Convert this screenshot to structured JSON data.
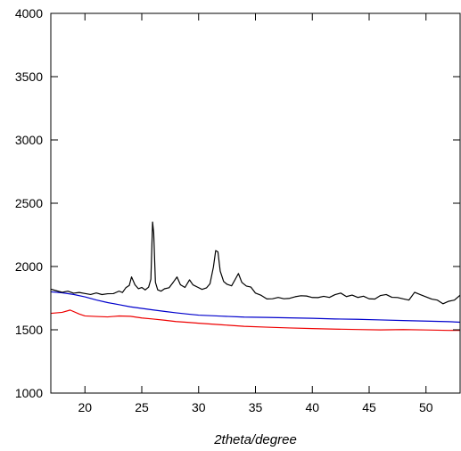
{
  "chart_data": {
    "type": "line",
    "title": "",
    "xlabel": "2theta/degree",
    "ylabel": "",
    "xlim": [
      17,
      53
    ],
    "ylim": [
      1000,
      4000
    ],
    "x_ticks": [
      20,
      25,
      30,
      35,
      40,
      45,
      50
    ],
    "y_ticks": [
      1000,
      1500,
      2000,
      2500,
      3000,
      3500,
      4000
    ],
    "grid": false,
    "legend": "none",
    "series": [
      {
        "color": "#000000",
        "x": [
          17,
          17.5,
          18,
          18.5,
          19,
          19.5,
          20,
          20.5,
          21,
          21.5,
          22,
          22.5,
          23,
          23.3,
          23.6,
          23.9,
          24.1,
          24.4,
          24.7,
          25,
          25.3,
          25.6,
          25.8,
          25.95,
          26.05,
          26.2,
          26.4,
          26.7,
          27,
          27.4,
          27.8,
          28.1,
          28.4,
          28.8,
          29.2,
          29.5,
          29.9,
          30.3,
          30.7,
          31,
          31.3,
          31.5,
          31.7,
          31.9,
          32.2,
          32.5,
          32.9,
          33.2,
          33.5,
          33.8,
          34.2,
          34.6,
          35,
          35.5,
          36,
          36.5,
          37,
          37.5,
          38,
          38.5,
          39,
          39.5,
          40,
          40.5,
          41,
          41.5,
          42,
          42.5,
          43,
          43.5,
          44,
          44.5,
          45,
          45.5,
          46,
          46.5,
          47,
          47.5,
          48,
          48.5,
          49,
          49.5,
          50,
          50.5,
          51,
          51.5,
          52,
          52.5,
          53
        ],
        "y": [
          1820,
          1810,
          1800,
          1810,
          1795,
          1800,
          1790,
          1780,
          1790,
          1775,
          1780,
          1780,
          1800,
          1790,
          1830,
          1850,
          1920,
          1860,
          1830,
          1840,
          1820,
          1840,
          1900,
          2350,
          2260,
          1870,
          1810,
          1800,
          1820,
          1830,
          1880,
          1920,
          1860,
          1840,
          1900,
          1860,
          1840,
          1820,
          1830,
          1860,
          1990,
          2120,
          2110,
          1960,
          1880,
          1860,
          1850,
          1900,
          1950,
          1880,
          1850,
          1840,
          1790,
          1770,
          1740,
          1740,
          1750,
          1740,
          1745,
          1760,
          1770,
          1770,
          1760,
          1760,
          1770,
          1760,
          1780,
          1790,
          1760,
          1770,
          1750,
          1760,
          1740,
          1740,
          1770,
          1780,
          1760,
          1760,
          1750,
          1740,
          1800,
          1780,
          1760,
          1740,
          1730,
          1700,
          1720,
          1730,
          1770
        ]
      },
      {
        "color": "#0000cc",
        "x": [
          17,
          18,
          19,
          20,
          21,
          22,
          23,
          24,
          25,
          26,
          27,
          28,
          29,
          30,
          32,
          34,
          36,
          38,
          40,
          42,
          44,
          46,
          48,
          50,
          52,
          53
        ],
        "y": [
          1800,
          1790,
          1775,
          1755,
          1730,
          1710,
          1695,
          1680,
          1670,
          1660,
          1650,
          1640,
          1630,
          1620,
          1610,
          1600,
          1595,
          1590,
          1585,
          1580,
          1578,
          1575,
          1572,
          1570,
          1568,
          1565
        ]
      },
      {
        "color": "#ee0000",
        "x": [
          17,
          18,
          18.7,
          19.5,
          20,
          21,
          22,
          23,
          24,
          25,
          26,
          27,
          28,
          29,
          30,
          32,
          34,
          36,
          38,
          40,
          42,
          44,
          46,
          48,
          50,
          52,
          53
        ],
        "y": [
          1630,
          1640,
          1660,
          1630,
          1615,
          1610,
          1605,
          1610,
          1605,
          1590,
          1580,
          1570,
          1560,
          1555,
          1550,
          1540,
          1530,
          1525,
          1520,
          1515,
          1510,
          1505,
          1500,
          1500,
          1495,
          1490,
          1490
        ]
      }
    ]
  }
}
